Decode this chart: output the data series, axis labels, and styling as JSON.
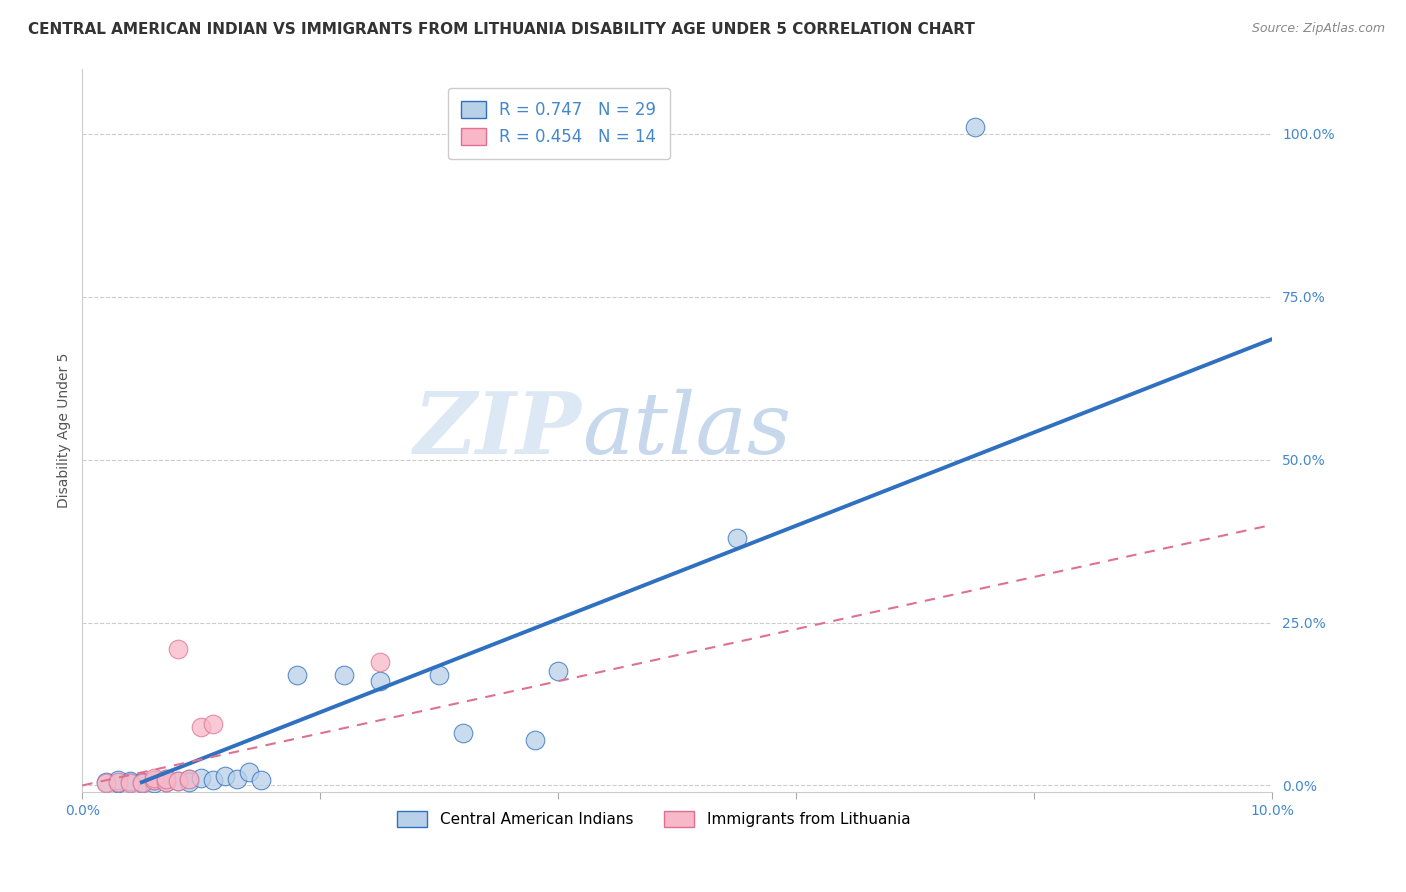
{
  "title": "CENTRAL AMERICAN INDIAN VS IMMIGRANTS FROM LITHUANIA DISABILITY AGE UNDER 5 CORRELATION CHART",
  "source": "Source: ZipAtlas.com",
  "ylabel": "Disability Age Under 5",
  "xlabel": "",
  "xlim": [
    0.0,
    0.1
  ],
  "ylim": [
    -0.01,
    1.1
  ],
  "xticks": [
    0.0,
    0.02,
    0.04,
    0.06,
    0.08,
    0.1
  ],
  "xtick_labels": [
    "0.0%",
    "",
    "",
    "",
    "",
    "10.0%"
  ],
  "ytick_labels_right": [
    "100.0%",
    "75.0%",
    "50.0%",
    "25.0%",
    "0.0%"
  ],
  "yticks_right": [
    1.0,
    0.75,
    0.5,
    0.25,
    0.0
  ],
  "blue_R": 0.747,
  "blue_N": 29,
  "pink_R": 0.454,
  "pink_N": 14,
  "blue_color": "#b8d0e8",
  "blue_line_color": "#3070c0",
  "pink_color": "#f8b8c8",
  "pink_line_color": "#e07090",
  "watermark_zip": "ZIP",
  "watermark_atlas": "atlas",
  "watermark_color_zip": "#dce8f4",
  "watermark_color_atlas": "#c8d8ec",
  "legend_label_blue": "Central American Indians",
  "legend_label_pink": "Immigrants from Lithuania",
  "blue_scatter_x": [
    0.002,
    0.003,
    0.003,
    0.004,
    0.004,
    0.005,
    0.005,
    0.006,
    0.006,
    0.007,
    0.007,
    0.008,
    0.009,
    0.009,
    0.01,
    0.011,
    0.012,
    0.013,
    0.014,
    0.015,
    0.018,
    0.022,
    0.025,
    0.03,
    0.032,
    0.038,
    0.04,
    0.055,
    0.075
  ],
  "blue_scatter_y": [
    0.005,
    0.003,
    0.008,
    0.005,
    0.007,
    0.003,
    0.006,
    0.004,
    0.008,
    0.006,
    0.01,
    0.007,
    0.01,
    0.005,
    0.012,
    0.008,
    0.015,
    0.01,
    0.02,
    0.008,
    0.17,
    0.17,
    0.16,
    0.17,
    0.08,
    0.07,
    0.175,
    0.38,
    1.01
  ],
  "pink_scatter_x": [
    0.002,
    0.003,
    0.004,
    0.005,
    0.006,
    0.006,
    0.007,
    0.007,
    0.008,
    0.008,
    0.009,
    0.01,
    0.011,
    0.025
  ],
  "pink_scatter_y": [
    0.003,
    0.005,
    0.004,
    0.003,
    0.008,
    0.012,
    0.005,
    0.01,
    0.007,
    0.21,
    0.01,
    0.09,
    0.095,
    0.19
  ],
  "blue_line_x": [
    0.005,
    0.1
  ],
  "blue_line_y": [
    0.005,
    0.685
  ],
  "pink_line_x": [
    0.0,
    0.1
  ],
  "pink_line_y": [
    0.0,
    0.4
  ],
  "grid_color": "#cccccc",
  "grid_yticks": [
    0.0,
    0.25,
    0.5,
    0.75,
    1.0
  ],
  "background_color": "#ffffff",
  "title_fontsize": 11,
  "axis_label_fontsize": 10,
  "tick_fontsize": 10,
  "legend_fontsize": 12,
  "source_fontsize": 9
}
